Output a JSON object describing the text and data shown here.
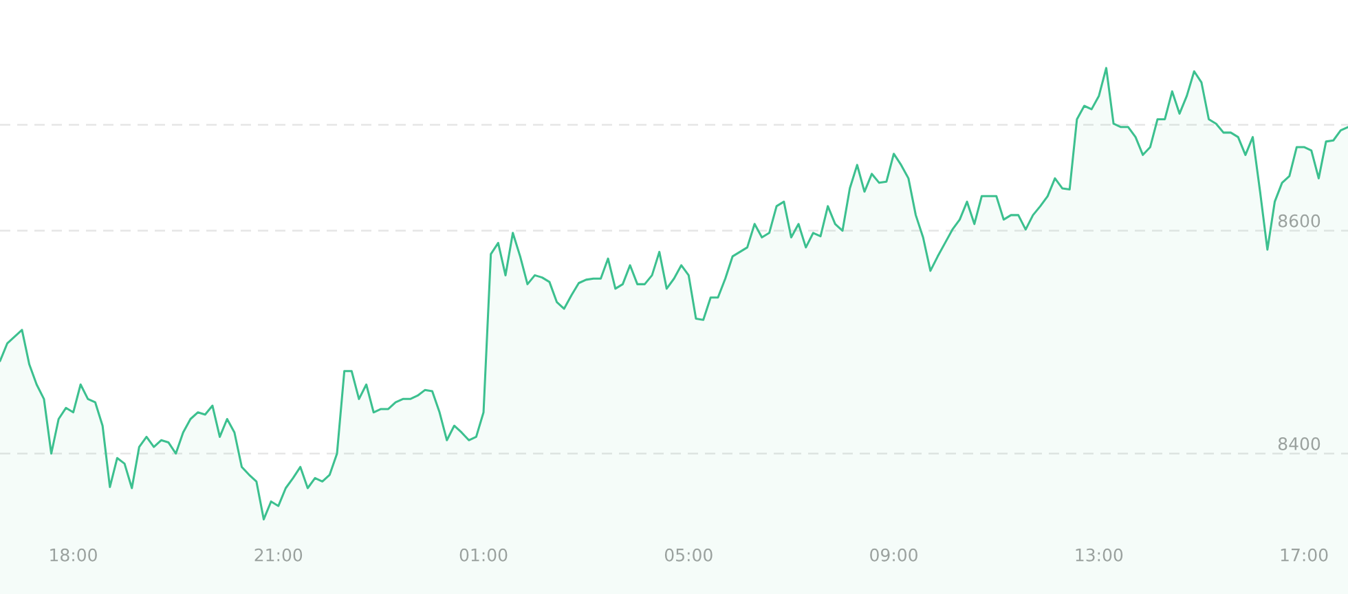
{
  "chart_data": {
    "type": "area",
    "categories": [
      null,
      null,
      null,
      null,
      null,
      null,
      null,
      null,
      null,
      null,
      "18:00",
      null,
      null,
      null,
      null,
      null,
      null,
      null,
      null,
      null,
      null,
      null,
      null,
      null,
      null,
      null,
      null,
      null,
      null,
      null,
      null,
      null,
      null,
      null,
      null,
      null,
      null,
      null,
      "21:00",
      null,
      null,
      null,
      null,
      null,
      null,
      null,
      null,
      null,
      null,
      null,
      null,
      null,
      null,
      null,
      null,
      null,
      null,
      null,
      null,
      null,
      null,
      null,
      null,
      null,
      null,
      null,
      "01:00",
      null,
      null,
      null,
      null,
      null,
      null,
      null,
      null,
      null,
      null,
      null,
      null,
      null,
      null,
      null,
      null,
      null,
      null,
      null,
      null,
      null,
      null,
      null,
      null,
      null,
      null,
      null,
      "05:00",
      null,
      null,
      null,
      null,
      null,
      null,
      null,
      null,
      null,
      null,
      null,
      null,
      null,
      null,
      null,
      null,
      null,
      null,
      null,
      null,
      null,
      null,
      null,
      null,
      null,
      null,
      null,
      "09:00",
      null,
      null,
      null,
      null,
      null,
      null,
      null,
      null,
      null,
      null,
      null,
      null,
      null,
      null,
      null,
      null,
      null,
      null,
      null,
      null,
      null,
      null,
      null,
      null,
      null,
      null,
      null,
      "13:00",
      null,
      null,
      null,
      null,
      null,
      null,
      null,
      null,
      null,
      null,
      null,
      null,
      null,
      null,
      null,
      null,
      null,
      null,
      null,
      null,
      null,
      null,
      null,
      null,
      null,
      null,
      null,
      "17:00",
      null,
      null,
      null,
      null,
      null,
      null
    ],
    "series": [
      {
        "color": "#3cc08f",
        "values": [
          8483,
          8499,
          8505,
          8511,
          8480,
          8462,
          8449,
          8400,
          8431,
          8441,
          8437,
          8462,
          8449,
          8446,
          8425,
          8370,
          8396,
          8391,
          8369,
          8406,
          8415,
          8406,
          8412,
          8410,
          8400,
          8419,
          8431,
          8437,
          8435,
          8443,
          8415,
          8431,
          8419,
          8388,
          8381,
          8375,
          8341,
          8357,
          8353,
          8369,
          8378,
          8388,
          8369,
          8378,
          8375,
          8381,
          8400,
          8474,
          8474,
          8449,
          8462,
          8437,
          8440,
          8440,
          8446,
          8449,
          8449,
          8452,
          8457,
          8456,
          8437,
          8412,
          8425,
          8419,
          8412,
          8415,
          8437,
          8579,
          8589,
          8560,
          8598,
          8577,
          8552,
          8560,
          8558,
          8554,
          8536,
          8530,
          8542,
          8553,
          8556,
          8557,
          8557,
          8575,
          8548,
          8552,
          8569,
          8552,
          8552,
          8560,
          8581,
          8548,
          8557,
          8569,
          8560,
          8521,
          8520,
          8540,
          8540,
          8557,
          8577,
          8581,
          8585,
          8606,
          8594,
          8598,
          8622,
          8626,
          8594,
          8606,
          8585,
          8598,
          8595,
          8622,
          8606,
          8600,
          8638,
          8659,
          8635,
          8651,
          8643,
          8644,
          8669,
          8659,
          8647,
          8614,
          8594,
          8564,
          8577,
          8589,
          8601,
          8610,
          8626,
          8606,
          8631,
          8631,
          8631,
          8610,
          8614,
          8614,
          8601,
          8614,
          8622,
          8631,
          8647,
          8638,
          8637,
          8700,
          8712,
          8709,
          8721,
          8746,
          8696,
          8693,
          8693,
          8684,
          8668,
          8675,
          8700,
          8700,
          8725,
          8705,
          8721,
          8743,
          8733,
          8700,
          8696,
          8688,
          8688,
          8684,
          8668,
          8684,
          8635,
          8583,
          8626,
          8643,
          8649,
          8675,
          8675,
          8672,
          8647,
          8680,
          8681,
          8690,
          8693
        ]
      }
    ],
    "ylim": [
      8274,
      8807
    ],
    "yticks": [
      8400,
      8600
    ],
    "grid": "y",
    "ref_lines": [
      {
        "axis": "y",
        "value": 8695,
        "color": "#e6e6e6",
        "line_style": "dashed"
      }
    ]
  }
}
